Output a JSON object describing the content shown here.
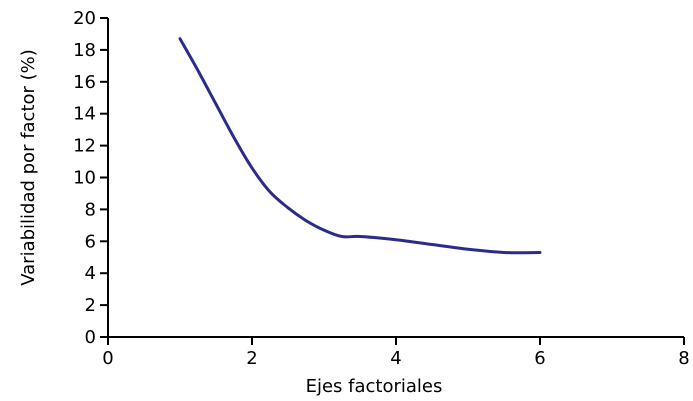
{
  "chart_data": {
    "type": "line",
    "xlabel": "Ejes factoriales",
    "ylabel": "Variabilidad por factor (%)",
    "xlim": [
      0,
      8
    ],
    "ylim": [
      0,
      20
    ],
    "x_ticks": [
      0,
      2,
      4,
      6,
      8
    ],
    "y_ticks": [
      0,
      2,
      4,
      6,
      8,
      10,
      12,
      14,
      16,
      18,
      20
    ],
    "grid": false,
    "legend": "none",
    "series": [
      {
        "color": "#2b2b8a",
        "x": [
          1.0,
          1.25,
          1.5,
          1.75,
          2.0,
          2.25,
          2.5,
          2.75,
          3.0,
          3.25,
          3.5,
          4.0,
          4.5,
          5.0,
          5.5,
          6.0
        ],
        "y": [
          18.7,
          16.7,
          14.6,
          12.5,
          10.6,
          9.1,
          8.1,
          7.3,
          6.7,
          6.3,
          6.3,
          6.1,
          5.8,
          5.5,
          5.3,
          5.3
        ]
      }
    ]
  }
}
